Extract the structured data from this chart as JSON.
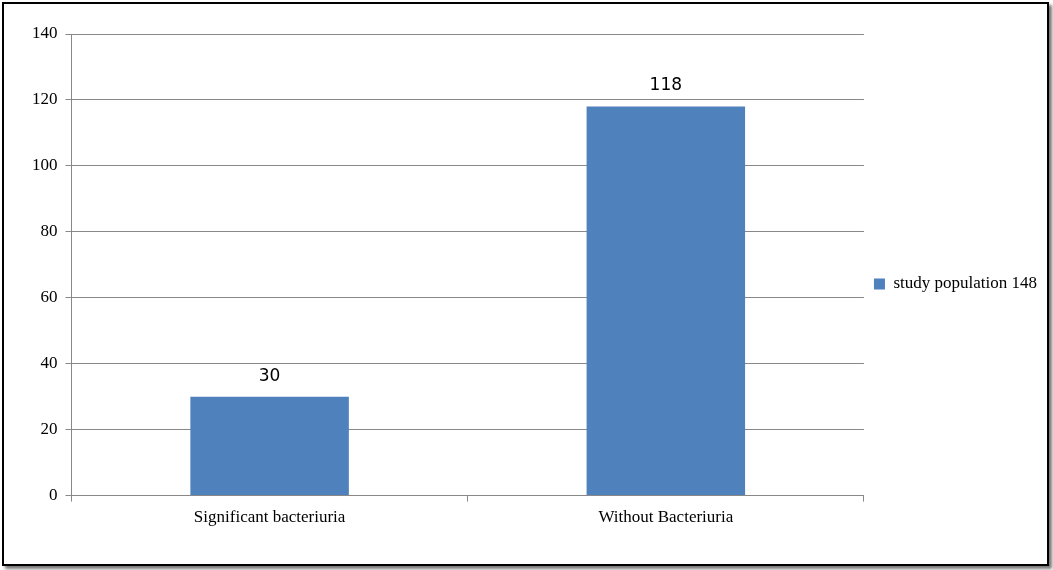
{
  "chart_data": {
    "type": "bar",
    "categories": [
      "Significant bacteriuria",
      "Without Bacteriuria"
    ],
    "series": [
      {
        "name": "study population 148",
        "color": "#4f81bd",
        "values": [
          30,
          118
        ]
      }
    ],
    "ylim": [
      0,
      140
    ],
    "yticks": [
      0,
      20,
      40,
      60,
      80,
      100,
      120,
      140
    ],
    "grid": "y",
    "legend": "right",
    "data_labels": true
  }
}
